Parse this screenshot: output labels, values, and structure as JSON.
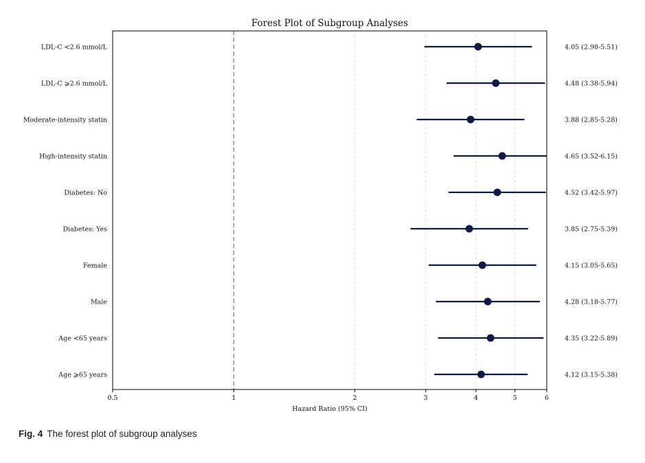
{
  "chart_data": {
    "type": "forest",
    "title": "Forest Plot of Subgroup Analyses",
    "xlabel": "Hazard Ratio (95% CI)",
    "x_scale": "log",
    "xlim": [
      0.5,
      6
    ],
    "x_ticks": [
      0.5,
      1,
      2,
      3,
      4,
      5,
      6
    ],
    "x_tick_labels": [
      "0.5",
      "1",
      "2",
      "3",
      "4",
      "5",
      "6"
    ],
    "reference_line": 1,
    "grid": "vertical dashed",
    "colors": {
      "point": "#0e1a48",
      "line": "#0e1a48",
      "reference": "#777777",
      "grid": "#d8d8d8"
    },
    "rows": [
      {
        "label": "LDL-C <2.6 mmol/L",
        "hr": 4.05,
        "lower": 2.98,
        "upper": 5.51,
        "text": "4.05 (2.98-5.51)"
      },
      {
        "label": "LDL-C ⩾2.6 mmol/L",
        "hr": 4.48,
        "lower": 3.38,
        "upper": 5.94,
        "text": "4.48 (3.38-5.94)"
      },
      {
        "label": "Moderate-intensity statin",
        "hr": 3.88,
        "lower": 2.85,
        "upper": 5.28,
        "text": "3.88 (2.85-5.28)"
      },
      {
        "label": "High-intensity statin",
        "hr": 4.65,
        "lower": 3.52,
        "upper": 6.15,
        "text": "4.65 (3.52-6.15)"
      },
      {
        "label": "Diabetes: No",
        "hr": 4.52,
        "lower": 3.42,
        "upper": 5.97,
        "text": "4.52 (3.42-5.97)"
      },
      {
        "label": "Diabetes: Yes",
        "hr": 3.85,
        "lower": 2.75,
        "upper": 5.39,
        "text": "3.85 (2.75-5.39)"
      },
      {
        "label": "Female",
        "hr": 4.15,
        "lower": 3.05,
        "upper": 5.65,
        "text": "4.15 (3.05-5.65)"
      },
      {
        "label": "Male",
        "hr": 4.28,
        "lower": 3.18,
        "upper": 5.77,
        "text": "4.28 (3.18-5.77)"
      },
      {
        "label": "Age <65 years",
        "hr": 4.35,
        "lower": 3.22,
        "upper": 5.89,
        "text": "4.35 (3.22-5.89)"
      },
      {
        "label": "Age ⩾65 years",
        "hr": 4.12,
        "lower": 3.15,
        "upper": 5.38,
        "text": "4.12 (3.15-5.38)"
      }
    ]
  },
  "caption": {
    "label": "Fig. 4",
    "text": "The forest plot of subgroup analyses"
  }
}
